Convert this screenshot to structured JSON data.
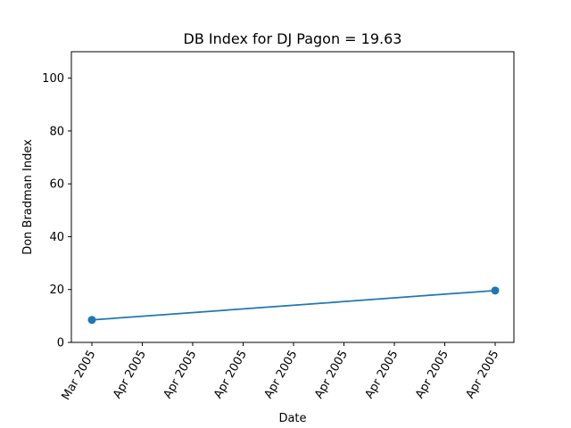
{
  "chart_data": {
    "type": "line",
    "title": "DB Index for DJ Pagon = 19.63",
    "xlabel": "Date",
    "ylabel": "Don Bradman Index",
    "ylim": [
      0,
      110
    ],
    "y_ticks": [
      0,
      20,
      40,
      60,
      80,
      100
    ],
    "x_tick_labels": [
      "Mar 2005",
      "Apr 2005",
      "Apr 2005",
      "Apr 2005",
      "Apr 2005",
      "Apr 2005",
      "Apr 2005",
      "Apr 2005",
      "Apr 2005"
    ],
    "grid": false,
    "series": [
      {
        "color": "#1f77b4",
        "marker": "circle",
        "points": [
          {
            "x": "Mar 2005",
            "y": 8.5
          },
          {
            "x": "Apr 2005",
            "y": 19.63
          }
        ]
      }
    ]
  }
}
